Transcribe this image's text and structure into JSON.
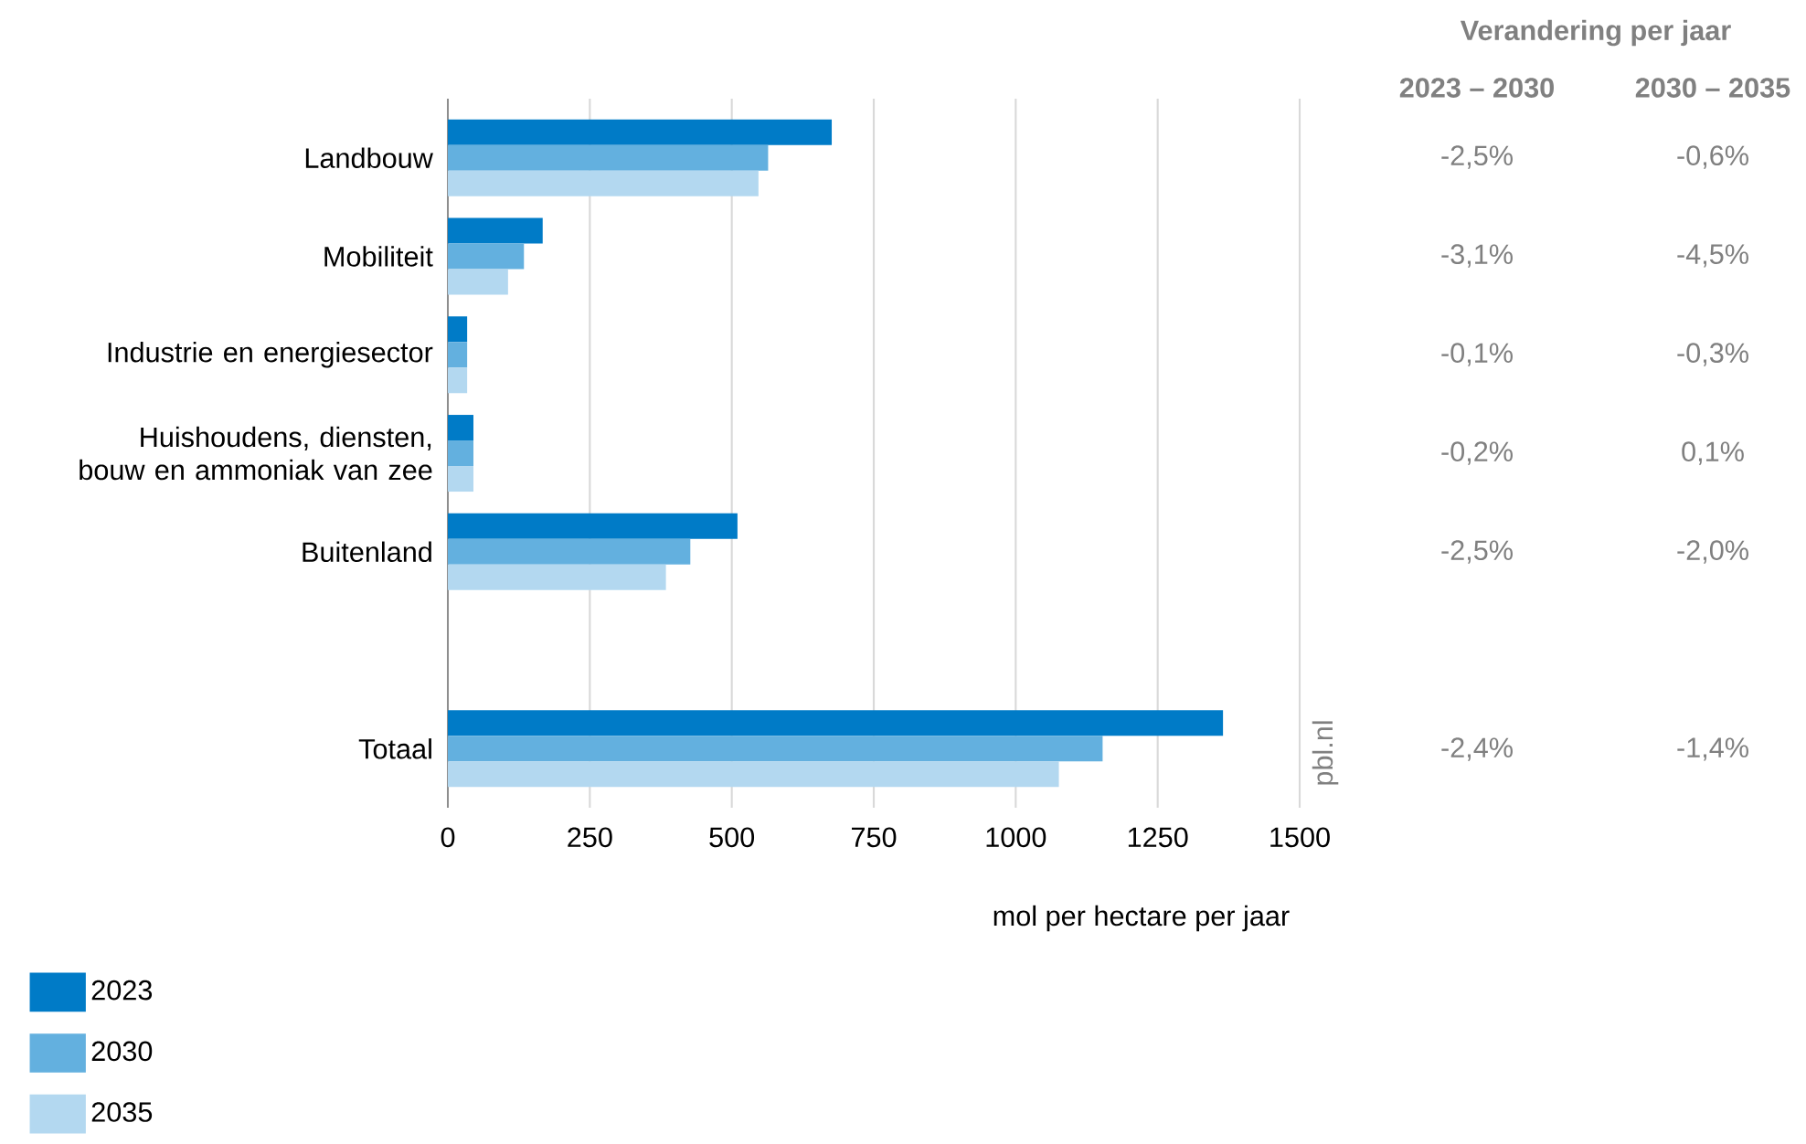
{
  "chart_data": {
    "type": "bar",
    "orientation": "horizontal",
    "categories": [
      "Landbouw",
      "Mobiliteit",
      "Industrie en energiesector",
      "Huishoudens, diensten, bouw en ammoniak van zee",
      "Buitenland",
      null,
      "Totaal"
    ],
    "series": [
      {
        "name": "2023",
        "color": "#007bc7",
        "values": [
          676,
          167,
          34,
          45,
          510,
          null,
          1365
        ]
      },
      {
        "name": "2030",
        "color": "#63b0df",
        "values": [
          564,
          134,
          34,
          45,
          427,
          null,
          1153
        ]
      },
      {
        "name": "2035",
        "color": "#b3d8f0",
        "values": [
          547,
          106,
          34,
          45,
          384,
          null,
          1076
        ]
      }
    ],
    "xlabel": "mol per hectare per jaar",
    "xlim": [
      0,
      1500
    ],
    "xticks": [
      0,
      250,
      500,
      750,
      1000,
      1250,
      1500
    ],
    "grid": "x",
    "legend": "bottom left",
    "annotations": [
      "Verandering per jaar",
      "2023 – 2030",
      "2030 – 2035",
      "-2,5%",
      "-0,6%",
      "-3,1%",
      "-4,5%",
      "-0,1%",
      "-0,3%",
      "-0,2%",
      "0,1%",
      "-2,5%",
      "-2,0%",
      "-2,4%",
      "-1,4%",
      "pbl.nl"
    ]
  }
}
